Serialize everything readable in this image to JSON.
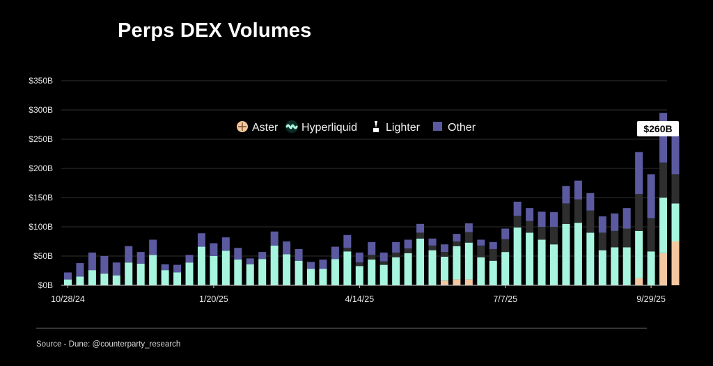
{
  "title": "Perps DEX Volumes",
  "source": "Source - Dune: @counterparty_research",
  "chart_data": {
    "type": "bar",
    "stacked": true,
    "ylim": [
      0,
      350
    ],
    "yticks": [
      0,
      50,
      100,
      150,
      200,
      250,
      300,
      350
    ],
    "ytick_labels": [
      "$0B",
      "$50B",
      "$100B",
      "$150B",
      "$200B",
      "$250B",
      "$300B",
      "$350B"
    ],
    "xtick_labels": [
      {
        "index": 0,
        "label": "10/28/24"
      },
      {
        "index": 12,
        "label": "1/20/25"
      },
      {
        "index": 24,
        "label": "4/14/25"
      },
      {
        "index": 36,
        "label": "7/7/25"
      },
      {
        "index": 48,
        "label": "9/29/25"
      }
    ],
    "legend": {
      "position": "top-center",
      "entries": [
        {
          "label": "Aster",
          "icon": "aster-icon",
          "color": "#f3c7a0"
        },
        {
          "label": "Hyperliquid",
          "icon": "hyperliquid-icon",
          "color": "#a7f5de"
        },
        {
          "label": "Lighter",
          "icon": "lighter-icon",
          "color": "#2e2e2e"
        },
        {
          "label": "Other",
          "icon": "other-square-icon",
          "color": "#5b5aa0"
        }
      ]
    },
    "annotation": {
      "label": "$260B",
      "index": 49
    },
    "gridlines": true,
    "series": [
      {
        "name": "Aster",
        "color": "#f3c7a0",
        "values": [
          0,
          0,
          0,
          0,
          0,
          0,
          0,
          0,
          0,
          0,
          0,
          0,
          0,
          0,
          0,
          0,
          0,
          0,
          0,
          0,
          0,
          0,
          0,
          0,
          0,
          0,
          0,
          0,
          0,
          0,
          0,
          8,
          10,
          10,
          0,
          0,
          0,
          0,
          0,
          0,
          0,
          0,
          0,
          0,
          0,
          0,
          0,
          12,
          0,
          55,
          75
        ]
      },
      {
        "name": "Hyperliquid",
        "color": "#a7f5de",
        "values": [
          10,
          15,
          26,
          20,
          17,
          39,
          37,
          52,
          26,
          22,
          39,
          66,
          50,
          59,
          44,
          36,
          45,
          68,
          53,
          42,
          28,
          28,
          45,
          58,
          33,
          44,
          35,
          48,
          55,
          80,
          60,
          41,
          57,
          63,
          48,
          42,
          57,
          99,
          90,
          78,
          70,
          105,
          107,
          90,
          60,
          65,
          65,
          81,
          58,
          95,
          65
        ]
      },
      {
        "name": "Lighter",
        "color": "#2e2e2e",
        "values": [
          0,
          0,
          0,
          0,
          0,
          0,
          0,
          0,
          0,
          0,
          0,
          0,
          0,
          0,
          0,
          0,
          0,
          0,
          0,
          0,
          0,
          0,
          0,
          6,
          6,
          8,
          6,
          8,
          8,
          10,
          8,
          8,
          8,
          18,
          20,
          20,
          22,
          20,
          20,
          22,
          30,
          35,
          40,
          38,
          30,
          28,
          32,
          63,
          57,
          60,
          50
        ]
      },
      {
        "name": "Other",
        "color": "#5b5aa0",
        "values": [
          12,
          23,
          30,
          30,
          22,
          28,
          20,
          26,
          10,
          13,
          13,
          23,
          22,
          23,
          20,
          10,
          12,
          24,
          22,
          20,
          12,
          16,
          21,
          22,
          17,
          22,
          15,
          18,
          15,
          15,
          12,
          13,
          13,
          15,
          10,
          12,
          18,
          24,
          22,
          26,
          25,
          30,
          32,
          30,
          28,
          30,
          35,
          72,
          75,
          85,
          70
        ]
      }
    ]
  }
}
